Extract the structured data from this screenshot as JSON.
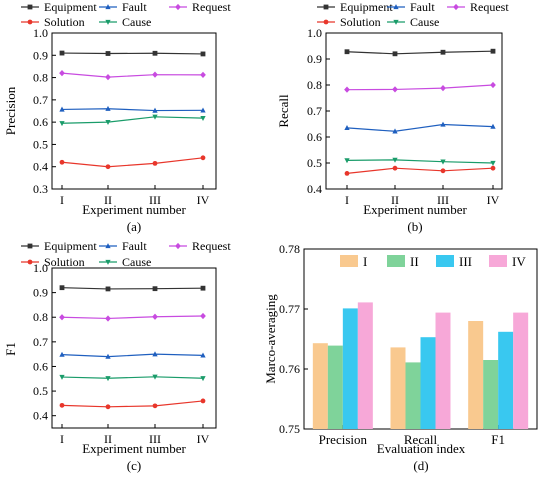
{
  "chart_data": [
    {
      "panel_label": "(a)",
      "type": "line",
      "xlabel": "Experiment number",
      "ylabel": "Precision",
      "categories": [
        "I",
        "II",
        "III",
        "IV"
      ],
      "ylim": [
        0.3,
        1.0
      ],
      "yticks": [
        "0.3",
        "0.4",
        "0.5",
        "0.6",
        "0.7",
        "0.8",
        "0.9",
        "1.0"
      ],
      "series": [
        {
          "name": "Equipment",
          "color": "#333333",
          "marker": "square",
          "values": [
            0.91,
            0.908,
            0.909,
            0.906
          ]
        },
        {
          "name": "Fault",
          "color": "#1f5fbf",
          "marker": "triangle-up",
          "values": [
            0.657,
            0.66,
            0.652,
            0.653
          ]
        },
        {
          "name": "Request",
          "color": "#c84be0",
          "marker": "diamond",
          "values": [
            0.82,
            0.802,
            0.813,
            0.812
          ]
        },
        {
          "name": "Solution",
          "color": "#e8362b",
          "marker": "circle",
          "values": [
            0.42,
            0.4,
            0.415,
            0.44
          ]
        },
        {
          "name": "Cause",
          "color": "#1a9c6a",
          "marker": "triangle-down",
          "values": [
            0.595,
            0.6,
            0.624,
            0.618
          ]
        }
      ]
    },
    {
      "panel_label": "(b)",
      "type": "line",
      "xlabel": "Experiment number",
      "ylabel": "Recall",
      "categories": [
        "I",
        "II",
        "III",
        "IV"
      ],
      "ylim": [
        0.4,
        1.0
      ],
      "yticks": [
        "0.4",
        "0.5",
        "0.6",
        "0.7",
        "0.8",
        "0.9",
        "1.0"
      ],
      "series": [
        {
          "name": "Equipment",
          "color": "#333333",
          "marker": "square",
          "values": [
            0.928,
            0.92,
            0.926,
            0.93
          ]
        },
        {
          "name": "Fault",
          "color": "#1f5fbf",
          "marker": "triangle-up",
          "values": [
            0.635,
            0.622,
            0.648,
            0.64
          ]
        },
        {
          "name": "Request",
          "color": "#c84be0",
          "marker": "diamond",
          "values": [
            0.782,
            0.783,
            0.788,
            0.8
          ]
        },
        {
          "name": "Solution",
          "color": "#e8362b",
          "marker": "circle",
          "values": [
            0.46,
            0.48,
            0.47,
            0.48
          ]
        },
        {
          "name": "Cause",
          "color": "#1a9c6a",
          "marker": "triangle-down",
          "values": [
            0.51,
            0.512,
            0.505,
            0.5
          ]
        }
      ]
    },
    {
      "panel_label": "(c)",
      "type": "line",
      "xlabel": "Experiment number",
      "ylabel": "F1",
      "categories": [
        "I",
        "II",
        "III",
        "IV"
      ],
      "ylim": [
        0.35,
        1.0
      ],
      "yticks": [
        "0.4",
        "0.5",
        "0.6",
        "0.7",
        "0.8",
        "0.9",
        "1.0"
      ],
      "series": [
        {
          "name": "Equipment",
          "color": "#333333",
          "marker": "square",
          "values": [
            0.92,
            0.915,
            0.916,
            0.918
          ]
        },
        {
          "name": "Fault",
          "color": "#1f5fbf",
          "marker": "triangle-up",
          "values": [
            0.648,
            0.64,
            0.65,
            0.645
          ]
        },
        {
          "name": "Request",
          "color": "#c84be0",
          "marker": "diamond",
          "values": [
            0.8,
            0.795,
            0.802,
            0.805
          ]
        },
        {
          "name": "Solution",
          "color": "#e8362b",
          "marker": "circle",
          "values": [
            0.442,
            0.436,
            0.44,
            0.46
          ]
        },
        {
          "name": "Cause",
          "color": "#1a9c6a",
          "marker": "triangle-down",
          "values": [
            0.557,
            0.552,
            0.558,
            0.552
          ]
        }
      ]
    },
    {
      "panel_label": "(d)",
      "type": "bar",
      "xlabel": "Evaluation index",
      "ylabel": "Marco-averaging",
      "categories": [
        "Precision",
        "Recall",
        "F1"
      ],
      "ylim": [
        0.75,
        0.78
      ],
      "yticks": [
        "0.75",
        "0.76",
        "0.77",
        "0.78"
      ],
      "series": [
        {
          "name": "I",
          "color": "#f9c98f",
          "values": [
            0.7643,
            0.7636,
            0.768
          ]
        },
        {
          "name": "II",
          "color": "#7fd39a",
          "values": [
            0.7639,
            0.7611,
            0.7615
          ]
        },
        {
          "name": "III",
          "color": "#39c8f0",
          "values": [
            0.7701,
            0.7653,
            0.7662
          ]
        },
        {
          "name": "IV",
          "color": "#f7a8d8",
          "values": [
            0.7711,
            0.7694,
            0.7694
          ]
        }
      ]
    }
  ]
}
